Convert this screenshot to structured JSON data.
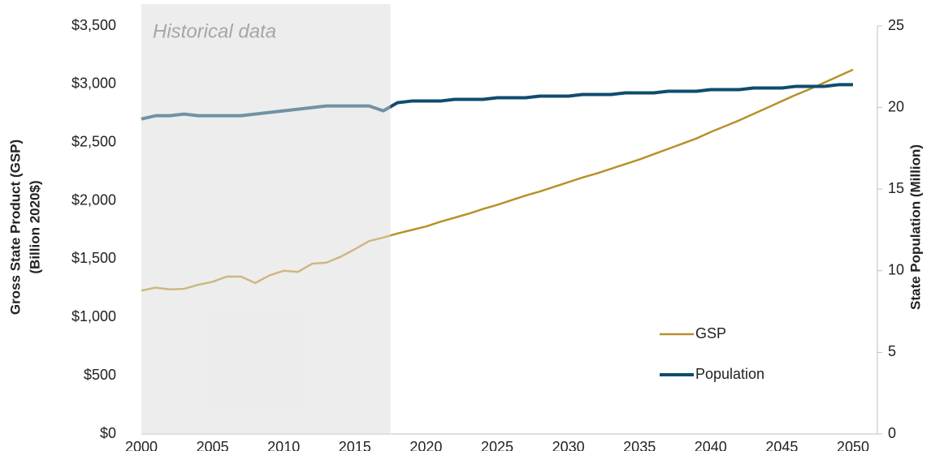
{
  "chart_data": {
    "type": "line",
    "y_label": [
      "Gross State Product (GSP)",
      "(Billion 2020$)"
    ],
    "y2_label": "State Population (Million)",
    "x": [
      2000,
      2001,
      2002,
      2003,
      2004,
      2005,
      2006,
      2007,
      2008,
      2009,
      2010,
      2011,
      2012,
      2013,
      2014,
      2015,
      2016,
      2017,
      2018,
      2019,
      2020,
      2021,
      2022,
      2023,
      2024,
      2025,
      2026,
      2027,
      2028,
      2029,
      2030,
      2031,
      2032,
      2033,
      2034,
      2035,
      2036,
      2037,
      2038,
      2039,
      2040,
      2041,
      2042,
      2043,
      2044,
      2045,
      2046,
      2047,
      2048,
      2049,
      2050
    ],
    "series": [
      {
        "name": "GSP",
        "color": "#b8912a",
        "values": [
          1230,
          1255,
          1240,
          1245,
          1280,
          1305,
          1350,
          1350,
          1295,
          1360,
          1400,
          1390,
          1460,
          1470,
          1520,
          1585,
          1655,
          1685,
          1720,
          1750,
          1780,
          1820,
          1855,
          1890,
          1930,
          1965,
          2005,
          2045,
          2080,
          2120,
          2160,
          2200,
          2235,
          2275,
          2315,
          2355,
          2400,
          2445,
          2490,
          2535,
          2590,
          2640,
          2690,
          2745,
          2800,
          2855,
          2910,
          2960,
          3015,
          3070,
          3125
        ]
      },
      {
        "name": "Population",
        "color": "#0f4c6e",
        "axis": "y2",
        "values": [
          19.3,
          19.5,
          19.5,
          19.6,
          19.5,
          19.5,
          19.5,
          19.5,
          19.6,
          19.7,
          19.8,
          19.9,
          20.0,
          20.1,
          20.1,
          20.1,
          20.1,
          19.8,
          20.3,
          20.4,
          20.4,
          20.4,
          20.5,
          20.5,
          20.5,
          20.6,
          20.6,
          20.6,
          20.7,
          20.7,
          20.7,
          20.8,
          20.8,
          20.8,
          20.9,
          20.9,
          20.9,
          21.0,
          21.0,
          21.0,
          21.1,
          21.1,
          21.1,
          21.2,
          21.2,
          21.2,
          21.3,
          21.3,
          21.3,
          21.4,
          21.4
        ]
      }
    ],
    "xlim": [
      2000,
      2050
    ],
    "xticks": [
      2000,
      2005,
      2010,
      2015,
      2020,
      2025,
      2030,
      2035,
      2040,
      2045,
      2050
    ],
    "ylim": [
      0,
      3500
    ],
    "yticks": [
      {
        "value": 0,
        "label": "$0"
      },
      {
        "value": 500,
        "label": "$500"
      },
      {
        "value": 1000,
        "label": "$1,000"
      },
      {
        "value": 1500,
        "label": "$1,500"
      },
      {
        "value": 2000,
        "label": "$2,000"
      },
      {
        "value": 2500,
        "label": "$2,500"
      },
      {
        "value": 3000,
        "label": "$3,000"
      },
      {
        "value": 3500,
        "label": "$3,500"
      }
    ],
    "y2lim": [
      0,
      25
    ],
    "y2ticks": [
      0,
      5,
      10,
      15,
      20,
      25
    ],
    "shaded_region": {
      "xlim": [
        2000,
        2017.5
      ],
      "label": "Historical data"
    },
    "legend": "lower right",
    "grid": false
  }
}
